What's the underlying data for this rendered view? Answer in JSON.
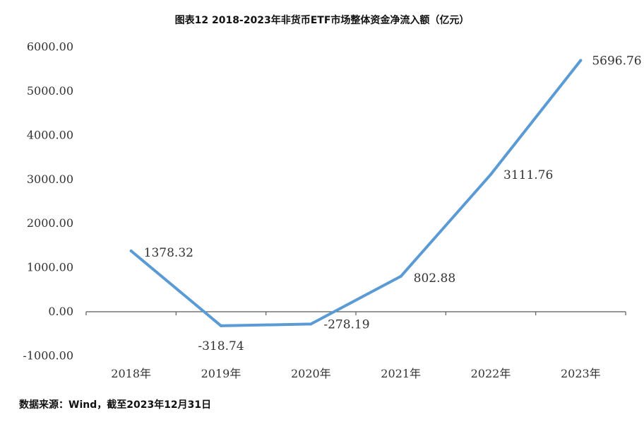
{
  "chart_data": {
    "type": "line",
    "title": "图表12 2018-2023年非货币ETF市场整体资金净流入额（亿元）",
    "categories": [
      "2018年",
      "2019年",
      "2020年",
      "2021年",
      "2022年",
      "2023年"
    ],
    "series": [
      {
        "values": [
          1378.32,
          -318.74,
          -278.19,
          802.88,
          3111.76,
          5696.76
        ]
      }
    ],
    "data_labels": [
      "1378.32",
      "-318.74",
      "-278.19",
      "802.88",
      "3111.76",
      "5696.76"
    ],
    "ylim": [
      -1000,
      6000
    ],
    "yticks": [
      -1000,
      0,
      1000,
      2000,
      3000,
      4000,
      5000,
      6000
    ],
    "ytick_labels": [
      "-1000.00",
      "0.00",
      "1000.00",
      "2000.00",
      "3000.00",
      "4000.00",
      "5000.00",
      "6000.00"
    ],
    "grid": false,
    "line_color": "#5B9BD5",
    "axis_color": "#595959"
  },
  "source_note": "数据来源：Wind，截至2023年12月31日"
}
